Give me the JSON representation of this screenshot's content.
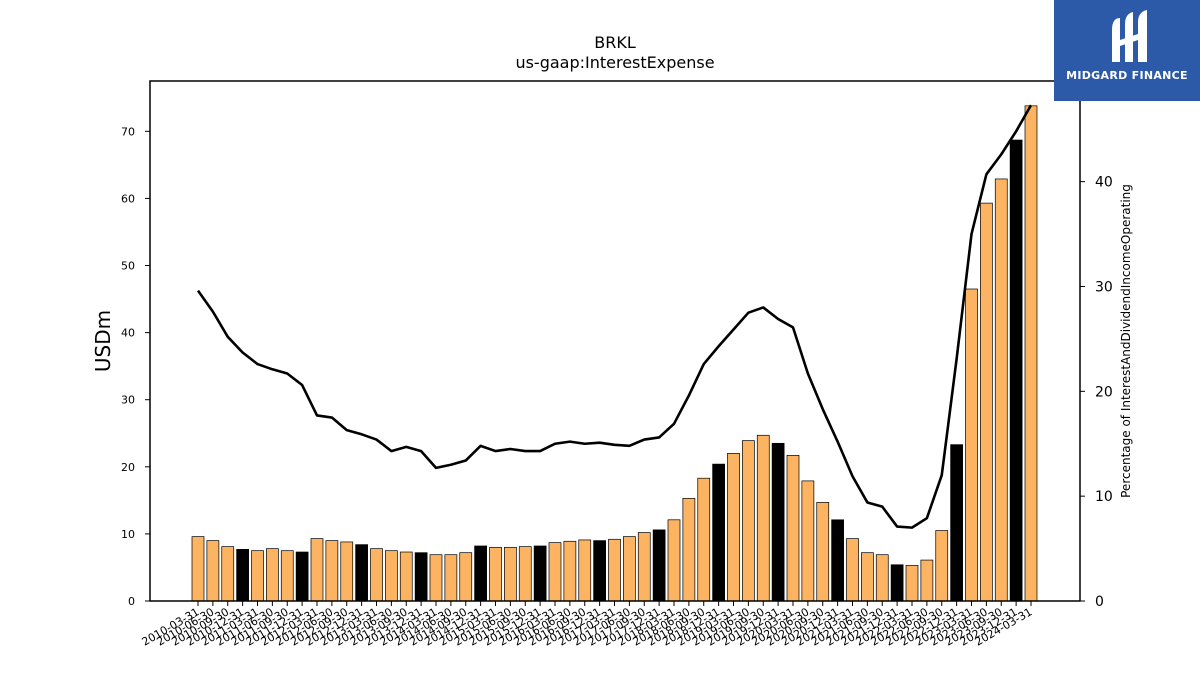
{
  "logo": {
    "text": "MIDGARD FINANCE",
    "icon": "midgard-m-logo-icon"
  },
  "chart_data": {
    "type": "bar",
    "title": "BRKL",
    "subtitle": "us-gaap:InterestExpense",
    "xlabel": "",
    "ylabel": "USDm",
    "y2label": "Percentage of InterestAndDividendIncomeOperating",
    "ylim": [
      0,
      77.5
    ],
    "y2lim": [
      0,
      49.6
    ],
    "yticks": [
      0,
      10,
      20,
      30,
      40,
      50,
      60,
      70
    ],
    "y2ticks": [
      0,
      10,
      20,
      30,
      40
    ],
    "grid": false,
    "legend": "none",
    "colors": {
      "bar": "#fdb462",
      "bar_q4": "#000000",
      "line": "#000000"
    },
    "categories": [
      "2010-03-31",
      "2010-06-30",
      "2010-09-30",
      "2010-12-31",
      "2011-03-31",
      "2011-06-30",
      "2011-09-30",
      "2011-12-31",
      "2012-03-31",
      "2012-06-30",
      "2012-09-30",
      "2012-12-31",
      "2013-03-31",
      "2013-06-30",
      "2013-09-30",
      "2013-12-31",
      "2014-03-31",
      "2014-06-30",
      "2014-09-30",
      "2014-12-31",
      "2015-03-31",
      "2015-06-30",
      "2015-09-30",
      "2015-12-31",
      "2016-03-31",
      "2016-06-30",
      "2016-09-30",
      "2016-12-31",
      "2017-03-31",
      "2017-06-30",
      "2017-09-30",
      "2017-12-31",
      "2018-03-31",
      "2018-06-30",
      "2018-09-30",
      "2018-12-31",
      "2019-03-31",
      "2019-06-30",
      "2019-09-30",
      "2019-12-31",
      "2020-03-31",
      "2020-06-30",
      "2020-09-30",
      "2020-12-31",
      "2021-03-31",
      "2021-06-30",
      "2021-09-30",
      "2021-12-31",
      "2022-03-31",
      "2022-06-30",
      "2022-09-30",
      "2022-12-31",
      "2023-03-31",
      "2023-06-30",
      "2023-09-30",
      "2023-12-31",
      "2024-03-31"
    ],
    "series": [
      {
        "values": [
          9.6,
          9.0,
          8.1,
          7.7,
          7.5,
          7.8,
          7.5,
          7.3,
          9.3,
          9.0,
          8.8,
          8.4,
          7.8,
          7.5,
          7.3,
          7.2,
          6.9,
          6.9,
          7.2,
          8.2,
          8.0,
          8.0,
          8.1,
          8.2,
          8.7,
          8.9,
          9.1,
          9.0,
          9.2,
          9.6,
          10.2,
          10.6,
          12.1,
          15.3,
          18.3,
          20.4,
          22.0,
          23.9,
          24.7,
          23.5,
          21.7,
          17.9,
          14.7,
          12.1,
          9.3,
          7.2,
          6.9,
          5.4,
          5.3,
          6.1,
          10.5,
          23.3,
          46.5,
          59.3,
          62.9,
          68.7,
          73.8
        ]
      },
      {
        "values": [
          29.6,
          27.6,
          25.2,
          23.7,
          22.6,
          22.1,
          21.7,
          20.6,
          17.7,
          17.5,
          16.3,
          15.9,
          15.4,
          14.3,
          14.7,
          14.3,
          12.7,
          13.0,
          13.4,
          14.8,
          14.3,
          14.5,
          14.3,
          14.3,
          15.0,
          15.2,
          15.0,
          15.1,
          14.9,
          14.8,
          15.4,
          15.6,
          16.9,
          19.6,
          22.6,
          24.3,
          25.9,
          27.5,
          28.0,
          26.9,
          26.1,
          21.7,
          18.3,
          15.2,
          11.9,
          9.4,
          9.0,
          7.1,
          7.0,
          7.9,
          12.0,
          23.1,
          35.0,
          40.7,
          42.6,
          44.8,
          47.3
        ]
      }
    ]
  }
}
